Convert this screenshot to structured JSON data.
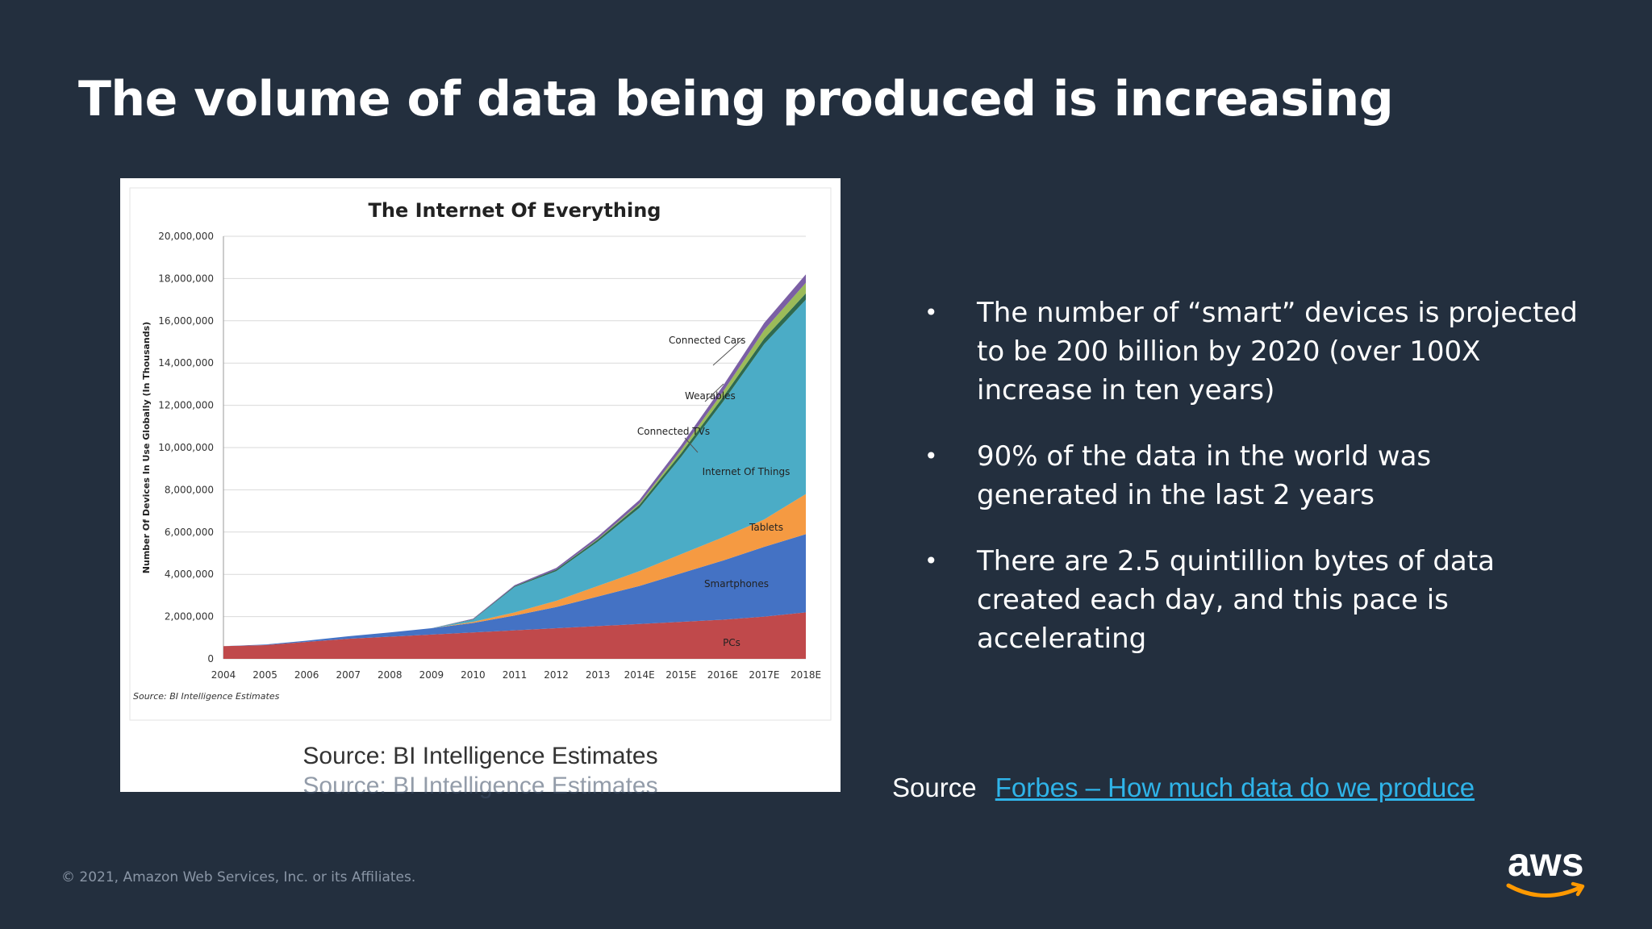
{
  "slide": {
    "title": "The volume of data being produced is increasing",
    "bullets": [
      "The number of “smart” devices is projected to be 200 billion by 2020 (over 100X increase in ten years)",
      "90% of the data in the world was generated in the last 2 years",
      "There are 2.5 quintillion bytes of data created each day, and this pace is accelerating"
    ],
    "image_caption": "Source: BI Intelligence Estimates",
    "source_label": "Source",
    "source_link": "Forbes – How much data do we produce",
    "copyright": "© 2021, Amazon Web Services, Inc. or its Affiliates.",
    "logo_text": "aws",
    "bullet_glyph": "•"
  },
  "chart_data": {
    "type": "area",
    "stacked": true,
    "title": "The Internet Of Everything",
    "ylabel": "Number Of Devices In Use Globally (In Thousands)",
    "xlabel": "",
    "source_note": "Source: BI Intelligence Estimates",
    "categories": [
      "2004",
      "2005",
      "2006",
      "2007",
      "2008",
      "2009",
      "2010",
      "2011",
      "2012",
      "2013",
      "2014E",
      "2015E",
      "2016E",
      "2017E",
      "2018E"
    ],
    "ylim": [
      0,
      20000000
    ],
    "yticks": [
      "0",
      "2,000,000",
      "4,000,000",
      "6,000,000",
      "8,000,000",
      "10,000,000",
      "12,000,000",
      "14,000,000",
      "16,000,000",
      "18,000,000",
      "20,000,000"
    ],
    "grid": true,
    "series": [
      {
        "name": "PCs",
        "color": "#c0494b",
        "values": [
          600000,
          650000,
          800000,
          950000,
          1050000,
          1150000,
          1250000,
          1350000,
          1450000,
          1550000,
          1650000,
          1750000,
          1850000,
          2000000,
          2200000
        ]
      },
      {
        "name": "Smartphones",
        "color": "#4472c4",
        "values": [
          0,
          30000,
          60000,
          120000,
          200000,
          300000,
          450000,
          700000,
          1000000,
          1400000,
          1800000,
          2300000,
          2800000,
          3300000,
          3700000
        ]
      },
      {
        "name": "Tablets",
        "color": "#f59a42",
        "values": [
          0,
          0,
          0,
          0,
          0,
          0,
          50000,
          150000,
          300000,
          500000,
          700000,
          900000,
          1100000,
          1300000,
          1900000
        ]
      },
      {
        "name": "Internet Of Things",
        "color": "#4bacc6",
        "values": [
          0,
          0,
          0,
          0,
          0,
          0,
          100000,
          1200000,
          1400000,
          2100000,
          3000000,
          4600000,
          6400000,
          8300000,
          9200000
        ]
      },
      {
        "name": "Connected TVs",
        "color": "#2f6a4f",
        "values": [
          0,
          0,
          0,
          0,
          0,
          0,
          20000,
          40000,
          70000,
          100000,
          140000,
          180000,
          220000,
          260000,
          300000
        ]
      },
      {
        "name": "Wearables",
        "color": "#9bbb59",
        "values": [
          0,
          0,
          0,
          0,
          0,
          0,
          0,
          0,
          0,
          20000,
          60000,
          150000,
          250000,
          400000,
          500000
        ]
      },
      {
        "name": "Connected Cars",
        "color": "#7b5fa5",
        "values": [
          0,
          0,
          0,
          0,
          0,
          0,
          30000,
          50000,
          80000,
          120000,
          170000,
          220000,
          280000,
          340000,
          400000
        ]
      }
    ]
  }
}
